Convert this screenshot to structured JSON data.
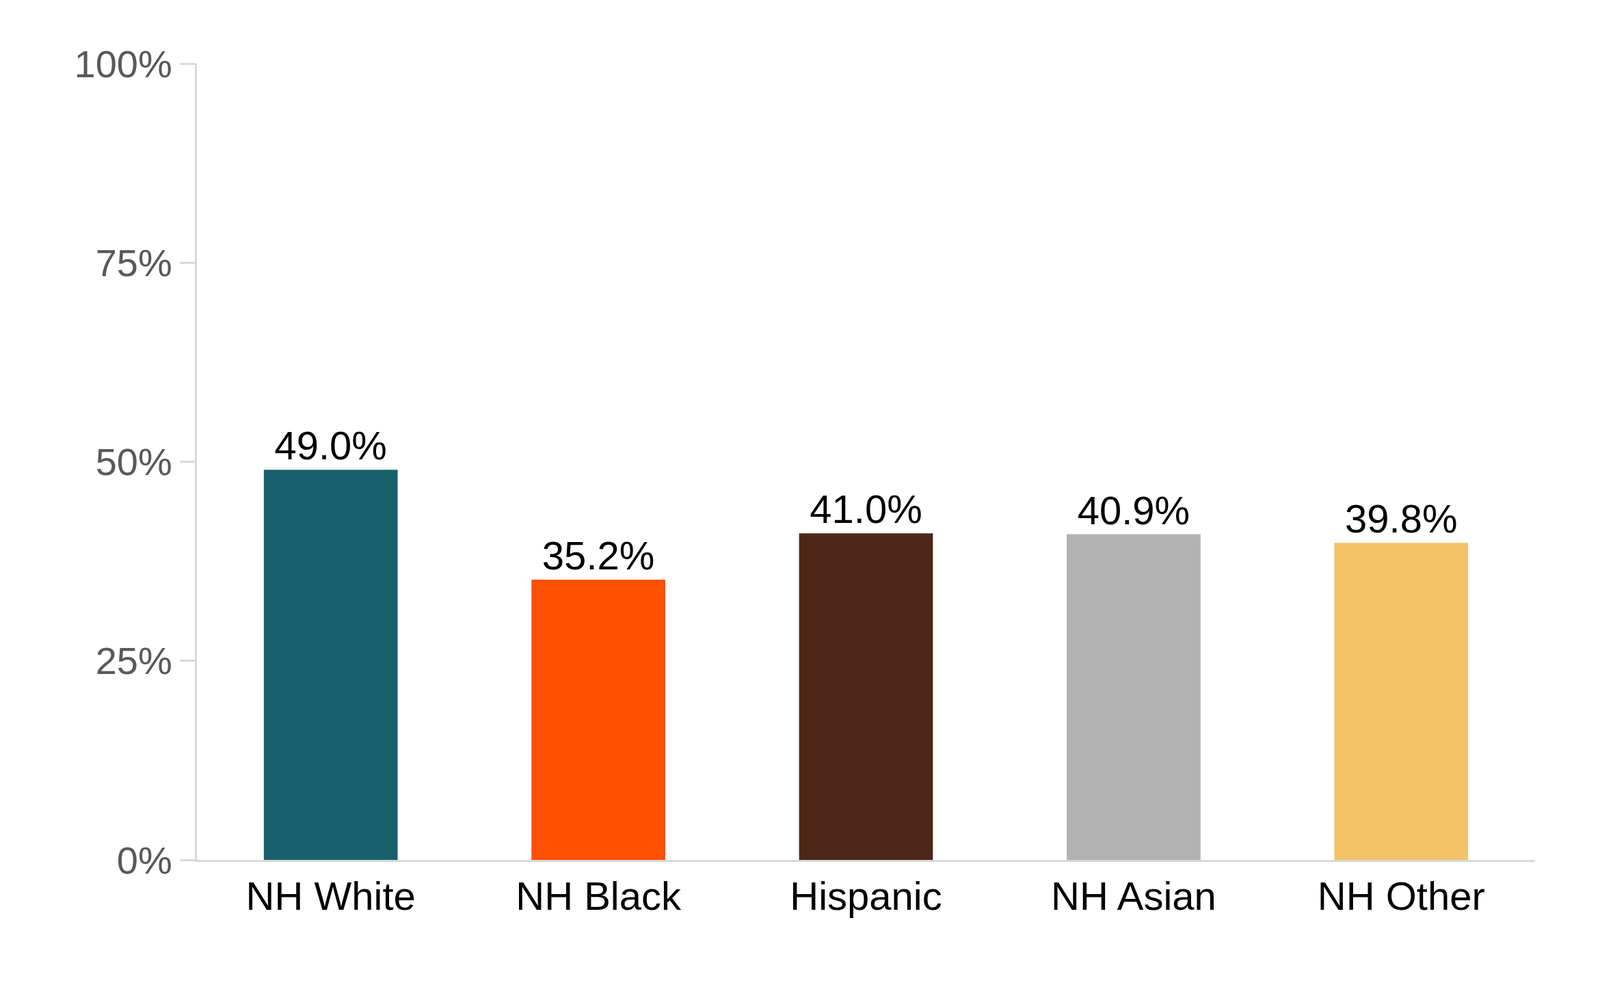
{
  "chart_data": {
    "type": "bar",
    "categories": [
      "NH White",
      "NH Black",
      "Hispanic",
      "NH Asian",
      "NH Other"
    ],
    "values": [
      49.0,
      35.2,
      41.0,
      40.9,
      39.8
    ],
    "value_labels": [
      "49.0%",
      "35.2%",
      "41.0%",
      "40.9%",
      "39.8%"
    ],
    "colors": [
      "#17606b",
      "#fc5000",
      "#4d2818",
      "#b2b2b2",
      "#f3c267"
    ],
    "ylim": [
      0,
      100
    ],
    "yticks": [
      {
        "value": 0,
        "label": "0%"
      },
      {
        "value": 25,
        "label": "25%"
      },
      {
        "value": 50,
        "label": "50%"
      },
      {
        "value": 75,
        "label": "75%"
      },
      {
        "value": 100,
        "label": "100%"
      }
    ],
    "grid": false,
    "data_labels": true
  }
}
